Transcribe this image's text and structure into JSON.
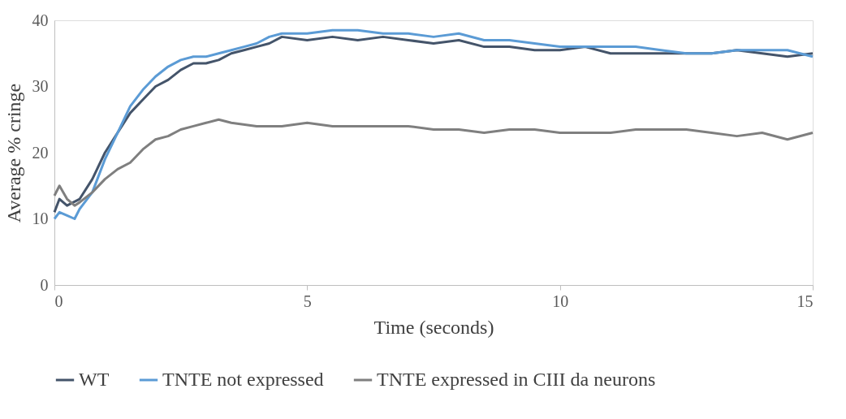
{
  "chart_data": {
    "type": "line",
    "xlabel": "Time (seconds)",
    "ylabel": "Average % cringe",
    "xlim": [
      0,
      15
    ],
    "xticks": [
      0,
      5,
      10,
      15
    ],
    "ylim": [
      0,
      40
    ],
    "yticks": [
      0,
      10,
      20,
      30,
      40
    ],
    "grid": false,
    "legend": "bottom",
    "marker": "none",
    "line_style": "solid",
    "series": [
      {
        "name": "WT",
        "color": "#44546a",
        "x": [
          0,
          0.1,
          0.25,
          0.5,
          0.75,
          1,
          1.25,
          1.5,
          1.75,
          2,
          2.25,
          2.5,
          2.75,
          3,
          3.25,
          3.5,
          3.75,
          4,
          4.25,
          4.5,
          5,
          5.5,
          6,
          6.5,
          7,
          7.5,
          8,
          8.5,
          9,
          9.5,
          10,
          10.5,
          11,
          11.5,
          12,
          12.5,
          13,
          13.5,
          14,
          14.5,
          15
        ],
        "values": [
          11,
          13,
          12,
          13,
          16,
          20,
          23,
          26,
          28,
          30,
          31,
          32.5,
          33.5,
          33.5,
          34,
          35,
          35.5,
          36,
          36.5,
          37.5,
          37,
          37.5,
          37,
          37.5,
          37,
          36.5,
          37,
          36,
          36,
          35.5,
          35.5,
          36,
          35,
          35,
          35,
          35,
          35,
          35.5,
          35,
          34.5,
          35
        ]
      },
      {
        "name": "TNTE not expressed",
        "color": "#5b9bd5",
        "x": [
          0,
          0.1,
          0.25,
          0.4,
          0.5,
          0.75,
          1,
          1.25,
          1.5,
          1.75,
          2,
          2.25,
          2.5,
          2.75,
          3,
          3.25,
          3.5,
          3.75,
          4,
          4.25,
          4.5,
          5,
          5.5,
          6,
          6.5,
          7,
          7.5,
          8,
          8.5,
          9,
          9.5,
          10,
          10.5,
          11,
          11.5,
          12,
          12.5,
          13,
          13.5,
          14,
          14.5,
          15
        ],
        "values": [
          10,
          11,
          10.5,
          10,
          11.5,
          14,
          19,
          23,
          27,
          29.5,
          31.5,
          33,
          34,
          34.5,
          34.5,
          35,
          35.5,
          36,
          36.5,
          37.5,
          38,
          38,
          38.5,
          38.5,
          38,
          38,
          37.5,
          38,
          37,
          37,
          36.5,
          36,
          36,
          36,
          36,
          35.5,
          35,
          35,
          35.5,
          35.5,
          35.5,
          34.5
        ]
      },
      {
        "name": "TNTE expressed in CIII da neurons",
        "color": "#7f7f7f",
        "x": [
          0,
          0.1,
          0.25,
          0.4,
          0.5,
          0.75,
          1,
          1.25,
          1.5,
          1.75,
          2,
          2.25,
          2.5,
          2.75,
          3,
          3.25,
          3.5,
          4,
          4.5,
          5,
          5.5,
          6,
          6.5,
          7,
          7.5,
          8,
          8.5,
          9,
          9.5,
          10,
          10.5,
          11,
          11.5,
          12,
          12.5,
          13,
          13.5,
          14,
          14.5,
          15
        ],
        "values": [
          13.5,
          15,
          13,
          12,
          12.5,
          14,
          16,
          17.5,
          18.5,
          20.5,
          22,
          22.5,
          23.5,
          24,
          24.5,
          25,
          24.5,
          24,
          24,
          24.5,
          24,
          24,
          24,
          24,
          23.5,
          23.5,
          23,
          23.5,
          23.5,
          23,
          23,
          23,
          23.5,
          23.5,
          23.5,
          23,
          22.5,
          23,
          22,
          23
        ]
      }
    ]
  }
}
